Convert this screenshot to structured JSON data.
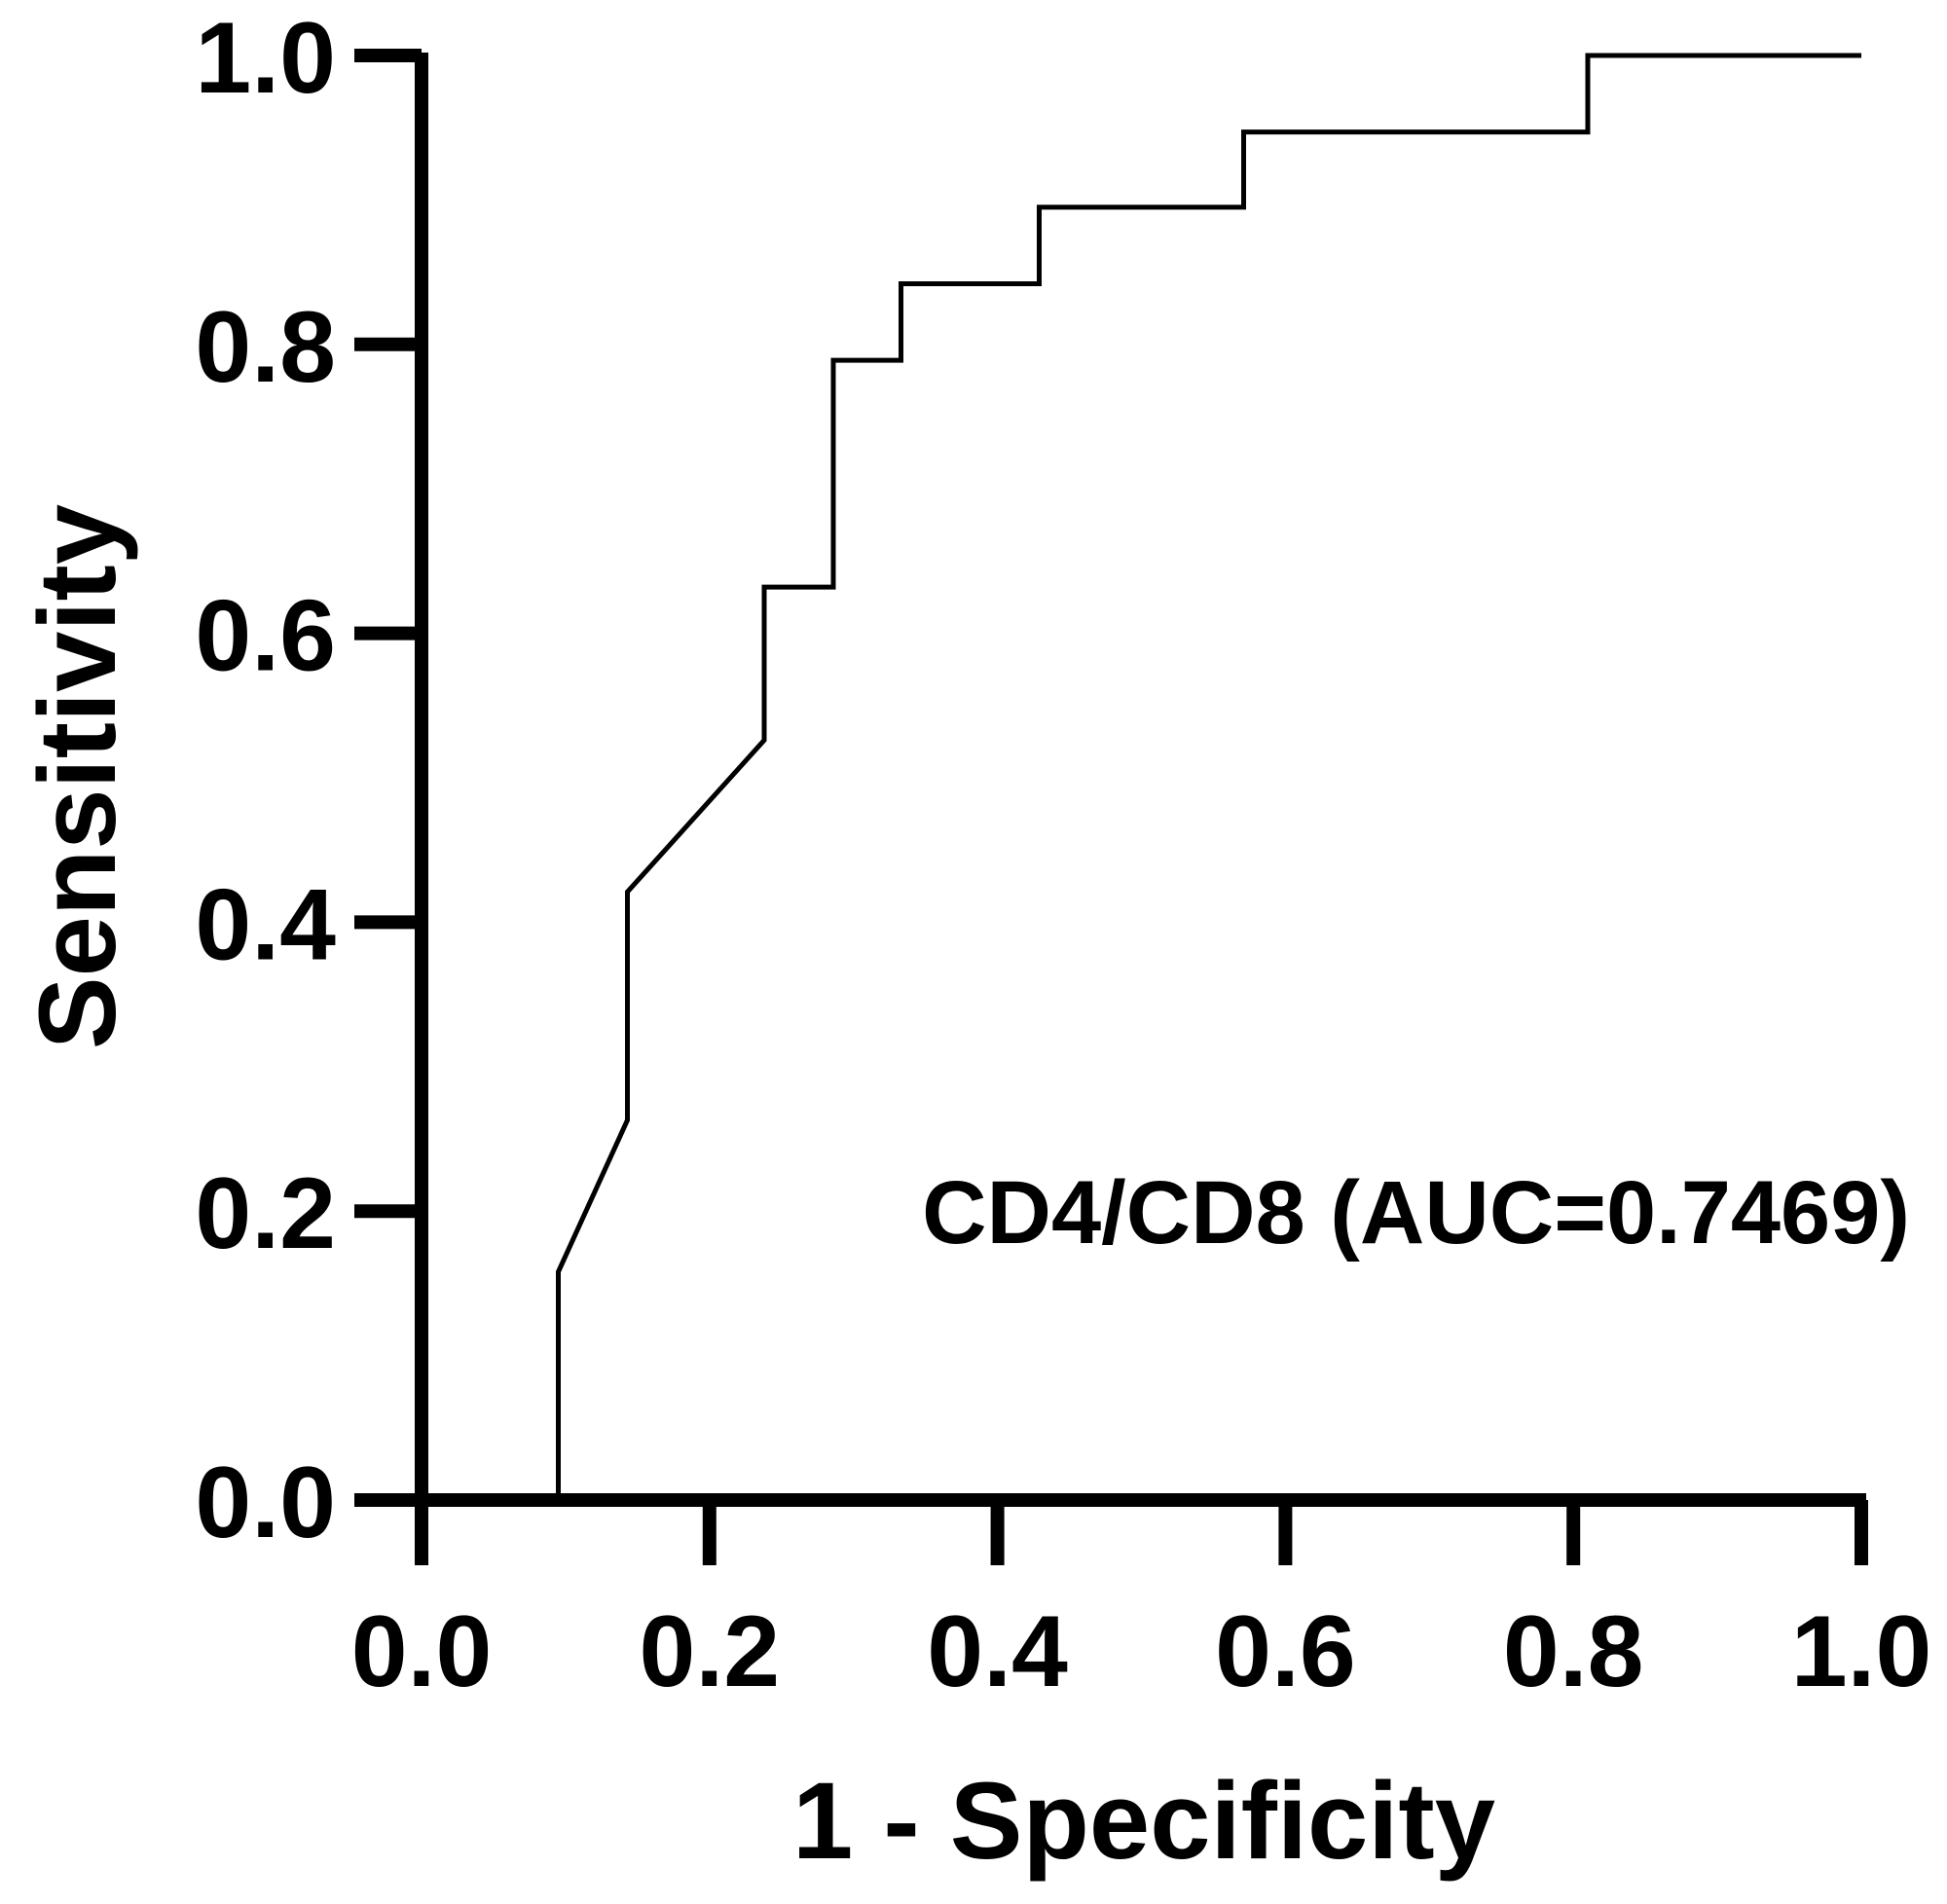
{
  "chart_data": {
    "type": "line",
    "title": "",
    "xlabel": "1 - Specificity",
    "ylabel": "Sensitivity",
    "xlim": [
      0,
      1
    ],
    "ylim": [
      0,
      1
    ],
    "x_ticks": [
      "0.0",
      "0.2",
      "0.4",
      "0.6",
      "0.8",
      "1.0"
    ],
    "y_ticks": [
      "0.0",
      "0.2",
      "0.4",
      "0.6",
      "0.8",
      "1.0"
    ],
    "grid": false,
    "annotation": "CD4/CD8 (AUC=0.7469)",
    "series": [
      {
        "name": "CD4/CD8 (AUC=0.7469)",
        "color": "#000000",
        "x": [
          0.095,
          0.095,
          0.143,
          0.143,
          0.238,
          0.238,
          0.286,
          0.286,
          0.333,
          0.333,
          0.429,
          0.429,
          0.571,
          0.571,
          0.81,
          0.81,
          1.0
        ],
        "y": [
          0.0,
          0.158,
          0.263,
          0.421,
          0.526,
          0.632,
          0.632,
          0.789,
          0.789,
          0.842,
          0.842,
          0.895,
          0.895,
          0.947,
          0.947,
          1.0,
          1.0
        ]
      }
    ]
  }
}
